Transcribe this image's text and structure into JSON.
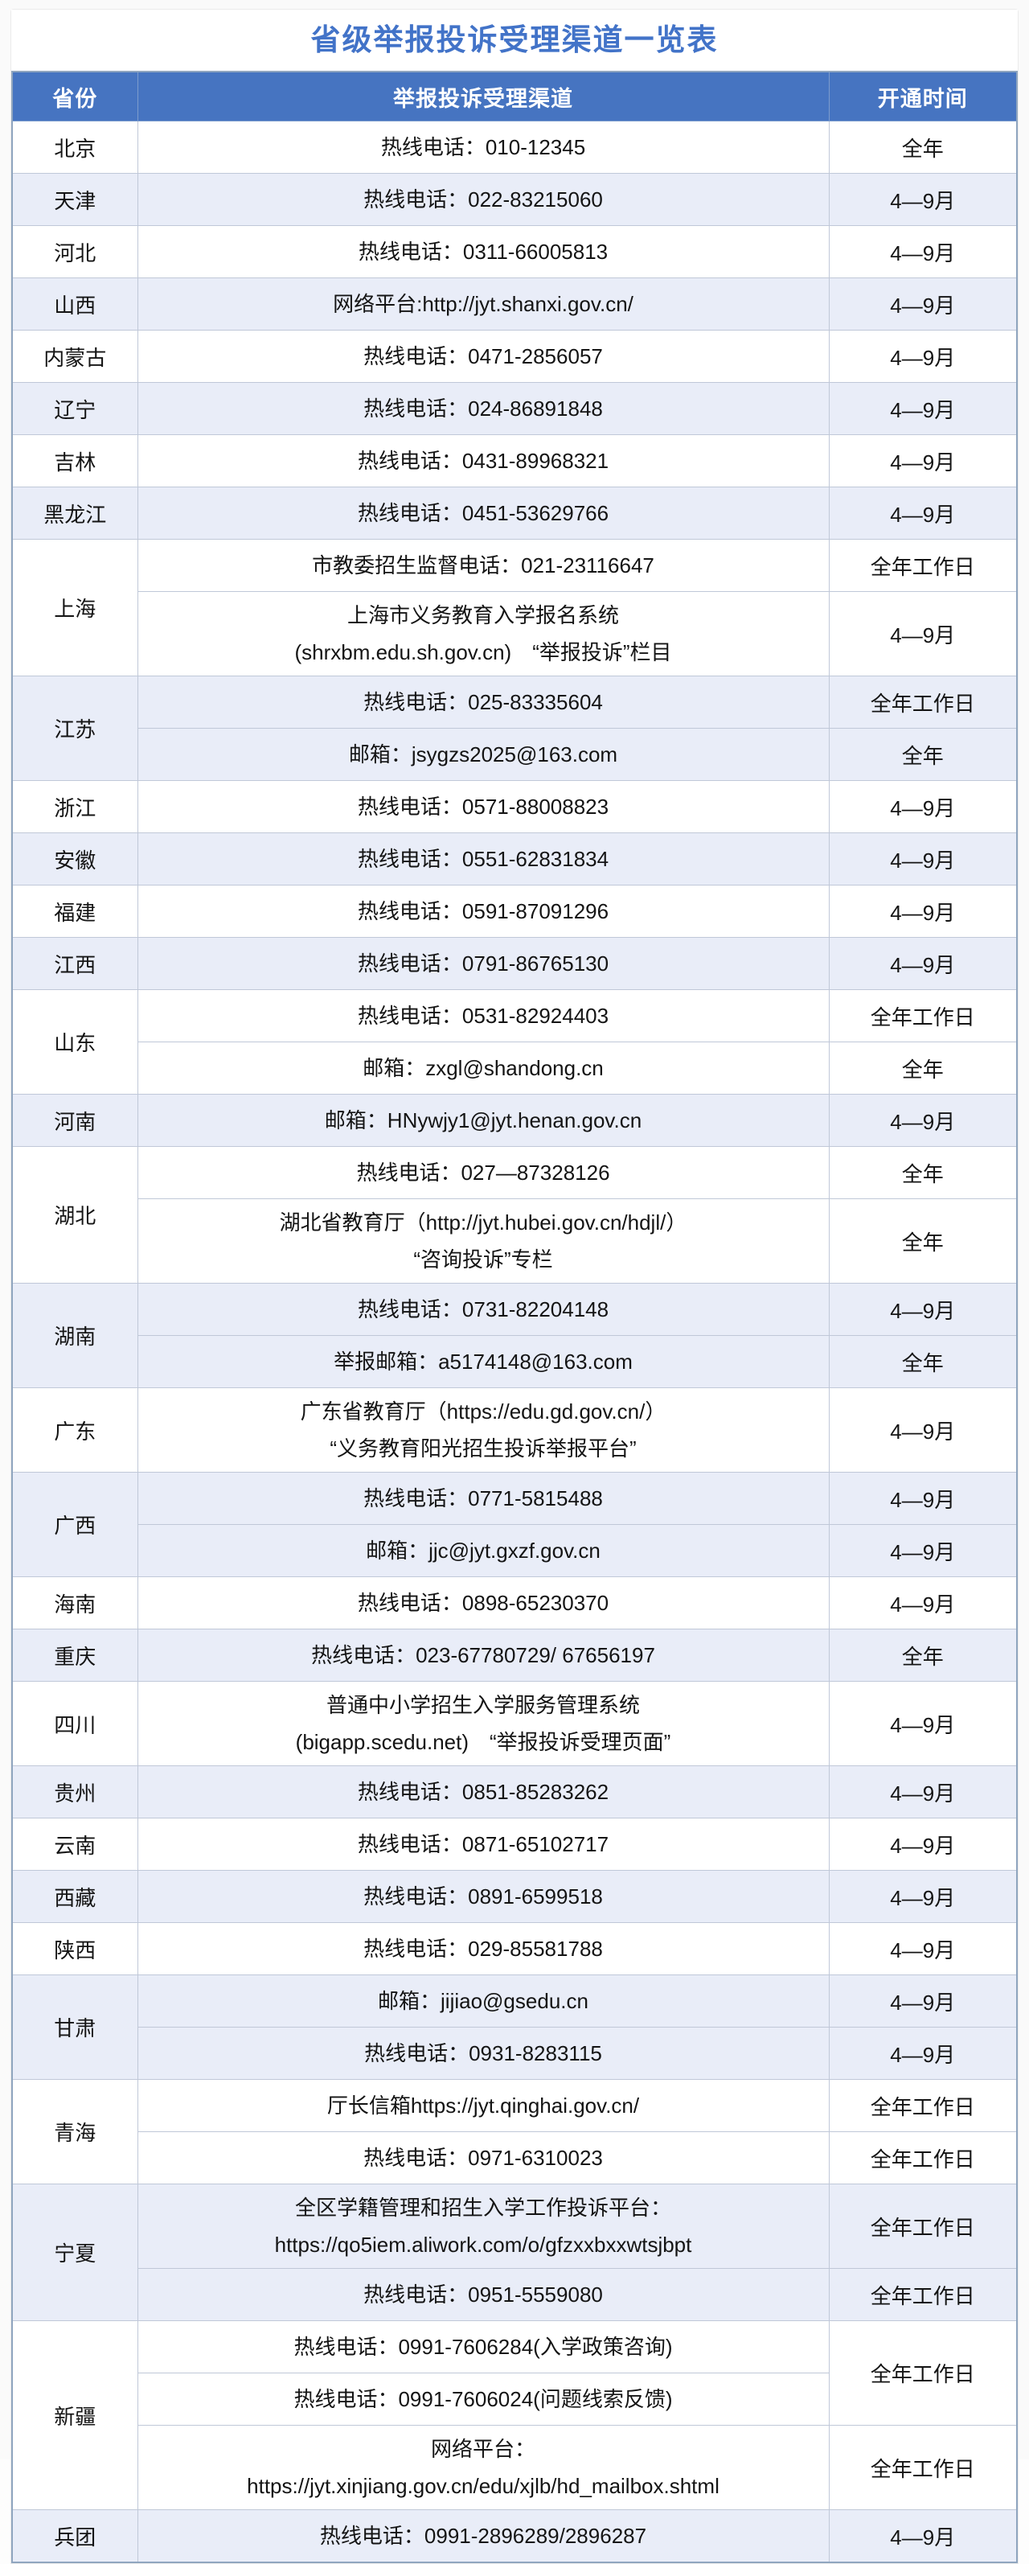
{
  "page": {
    "title": "省级举报投诉受理渠道一览表"
  },
  "colors": {
    "title_text": "#4273C8",
    "header_bg": "#4674C1",
    "header_text": "#FFFFFF",
    "row_shade_bg": "#E9EDF8",
    "grid_border": "#C0C8D8",
    "outer_border": "#8FA5BF"
  },
  "table": {
    "columns": [
      "省份",
      "举报投诉受理渠道",
      "开通时间"
    ],
    "groups": [
      {
        "province": "北京",
        "shade": false,
        "rows": [
          {
            "channel": [
              "热线电话：010-12345"
            ],
            "time": "全年"
          }
        ]
      },
      {
        "province": "天津",
        "shade": true,
        "rows": [
          {
            "channel": [
              "热线电话：022-83215060"
            ],
            "time": "4—9月"
          }
        ]
      },
      {
        "province": "河北",
        "shade": false,
        "rows": [
          {
            "channel": [
              "热线电话：0311-66005813"
            ],
            "time": "4—9月"
          }
        ]
      },
      {
        "province": "山西",
        "shade": true,
        "rows": [
          {
            "channel": [
              "网络平台:http://jyt.shanxi.gov.cn/"
            ],
            "time": "4—9月"
          }
        ]
      },
      {
        "province": "内蒙古",
        "shade": false,
        "rows": [
          {
            "channel": [
              "热线电话：0471-2856057"
            ],
            "time": "4—9月"
          }
        ]
      },
      {
        "province": "辽宁",
        "shade": true,
        "rows": [
          {
            "channel": [
              "热线电话：024-86891848"
            ],
            "time": "4—9月"
          }
        ]
      },
      {
        "province": "吉林",
        "shade": false,
        "rows": [
          {
            "channel": [
              "热线电话：0431-89968321"
            ],
            "time": "4—9月"
          }
        ]
      },
      {
        "province": "黑龙江",
        "shade": true,
        "rows": [
          {
            "channel": [
              "热线电话：0451-53629766"
            ],
            "time": "4—9月"
          }
        ]
      },
      {
        "province": "上海",
        "shade": false,
        "rows": [
          {
            "channel": [
              "市教委招生监督电话：021-23116647"
            ],
            "time": "全年工作日"
          },
          {
            "channel": [
              "上海市义务教育入学报名系统",
              "(shrxbm.edu.sh.gov.cn)　“举报投诉”栏目"
            ],
            "time": "4—9月"
          }
        ]
      },
      {
        "province": "江苏",
        "shade": true,
        "rows": [
          {
            "channel": [
              "热线电话：025-83335604"
            ],
            "time": "全年工作日"
          },
          {
            "channel": [
              "邮箱：jsygzs2025@163.com"
            ],
            "time": "全年"
          }
        ]
      },
      {
        "province": "浙江",
        "shade": false,
        "rows": [
          {
            "channel": [
              "热线电话：0571-88008823"
            ],
            "time": "4—9月"
          }
        ]
      },
      {
        "province": "安徽",
        "shade": true,
        "rows": [
          {
            "channel": [
              "热线电话：0551-62831834"
            ],
            "time": "4—9月"
          }
        ]
      },
      {
        "province": "福建",
        "shade": false,
        "rows": [
          {
            "channel": [
              "热线电话：0591-87091296"
            ],
            "time": "4—9月"
          }
        ]
      },
      {
        "province": "江西",
        "shade": true,
        "rows": [
          {
            "channel": [
              "热线电话：0791-86765130"
            ],
            "time": "4—9月"
          }
        ]
      },
      {
        "province": "山东",
        "shade": false,
        "rows": [
          {
            "channel": [
              "热线电话：0531-82924403"
            ],
            "time": "全年工作日"
          },
          {
            "channel": [
              "邮箱：zxgl@shandong.cn"
            ],
            "time": "全年"
          }
        ]
      },
      {
        "province": "河南",
        "shade": true,
        "rows": [
          {
            "channel": [
              "邮箱：HNywjy1@jyt.henan.gov.cn"
            ],
            "time": "4—9月"
          }
        ]
      },
      {
        "province": "湖北",
        "shade": false,
        "rows": [
          {
            "channel": [
              "热线电话：027—87328126"
            ],
            "time": "全年"
          },
          {
            "channel": [
              "湖北省教育厅（http://jyt.hubei.gov.cn/hdjl/）",
              "“咨询投诉”专栏"
            ],
            "time": "全年"
          }
        ]
      },
      {
        "province": "湖南",
        "shade": true,
        "rows": [
          {
            "channel": [
              "热线电话：0731-82204148"
            ],
            "time": "4—9月"
          },
          {
            "channel": [
              "举报邮箱：a5174148@163.com"
            ],
            "time": "全年"
          }
        ]
      },
      {
        "province": "广东",
        "shade": false,
        "rows": [
          {
            "channel": [
              "广东省教育厅（https://edu.gd.gov.cn/）",
              "“义务教育阳光招生投诉举报平台”"
            ],
            "time": "4—9月"
          }
        ]
      },
      {
        "province": "广西",
        "shade": true,
        "rows": [
          {
            "channel": [
              "热线电话：0771-5815488"
            ],
            "time": "4—9月"
          },
          {
            "channel": [
              "邮箱：jjc@jyt.gxzf.gov.cn"
            ],
            "time": "4—9月"
          }
        ]
      },
      {
        "province": "海南",
        "shade": false,
        "rows": [
          {
            "channel": [
              "热线电话：0898-65230370"
            ],
            "time": "4—9月"
          }
        ]
      },
      {
        "province": "重庆",
        "shade": true,
        "rows": [
          {
            "channel": [
              "热线电话：023-67780729/ 67656197"
            ],
            "time": "全年"
          }
        ]
      },
      {
        "province": "四川",
        "shade": false,
        "rows": [
          {
            "channel": [
              "普通中小学招生入学服务管理系统",
              "(bigapp.scedu.net)　“举报投诉受理页面”"
            ],
            "time": "4—9月"
          }
        ]
      },
      {
        "province": "贵州",
        "shade": true,
        "rows": [
          {
            "channel": [
              "热线电话：0851-85283262"
            ],
            "time": "4—9月"
          }
        ]
      },
      {
        "province": "云南",
        "shade": false,
        "rows": [
          {
            "channel": [
              "热线电话：0871-65102717"
            ],
            "time": "4—9月"
          }
        ]
      },
      {
        "province": "西藏",
        "shade": true,
        "rows": [
          {
            "channel": [
              "热线电话：0891-6599518"
            ],
            "time": "4—9月"
          }
        ]
      },
      {
        "province": "陕西",
        "shade": false,
        "rows": [
          {
            "channel": [
              "热线电话：029-85581788"
            ],
            "time": "4—9月"
          }
        ]
      },
      {
        "province": "甘肃",
        "shade": true,
        "rows": [
          {
            "channel": [
              "邮箱：jijiao@gsedu.cn"
            ],
            "time": "4—9月"
          },
          {
            "channel": [
              "热线电话：0931-8283115"
            ],
            "time": "4—9月"
          }
        ]
      },
      {
        "province": "青海",
        "shade": false,
        "rows": [
          {
            "channel": [
              "厅长信箱https://jyt.qinghai.gov.cn/"
            ],
            "time": "全年工作日"
          },
          {
            "channel": [
              "热线电话：0971-6310023"
            ],
            "time": "全年工作日"
          }
        ]
      },
      {
        "province": "宁夏",
        "shade": true,
        "rows": [
          {
            "channel": [
              "全区学籍管理和招生入学工作投诉平台：",
              "https://qo5iem.aliwork.com/o/gfzxxbxxwtsjbpt"
            ],
            "time": "全年工作日"
          },
          {
            "channel": [
              "热线电话：0951-5559080"
            ],
            "time": "全年工作日"
          }
        ]
      },
      {
        "province": "新疆",
        "shade": false,
        "rows": [
          {
            "channel": [
              "热线电话：0991-7606284(入学政策咨询)"
            ],
            "time": "全年工作日",
            "time_rowspan": 2
          },
          {
            "channel": [
              "热线电话：0991-7606024(问题线索反馈)"
            ],
            "time": null
          },
          {
            "channel": [
              "网络平台：",
              "https://jyt.xinjiang.gov.cn/edu/xjlb/hd_mailbox.shtml"
            ],
            "time": "全年工作日"
          }
        ]
      },
      {
        "province": "兵团",
        "shade": true,
        "rows": [
          {
            "channel": [
              "热线电话：0991-2896289/2896287"
            ],
            "time": "4—9月"
          }
        ]
      }
    ]
  }
}
